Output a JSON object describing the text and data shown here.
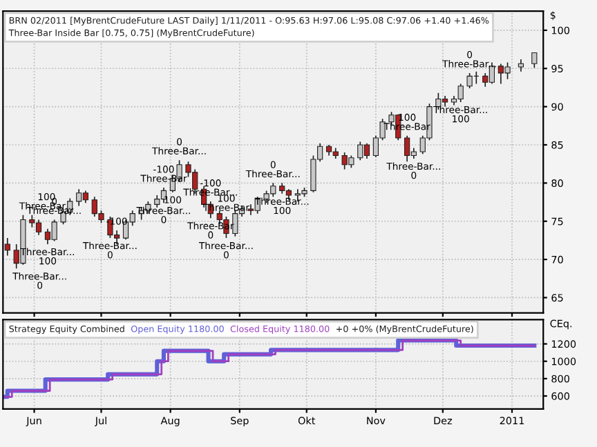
{
  "chart_data": [
    {
      "type": "candlestick",
      "title": "BRN 02/2011 [MyBrentCrudeFuture LAST Daily] 1/11/2011 - O:95.63 H:97.06 L:95.08 C:97.06 +1.40 +1.46%",
      "subtitle": "Three-Bar Inside Bar [0.75, 0.75] (MyBrentCrudeFuture)",
      "ylabel": "$",
      "x": [
        "2010-05-20",
        "2010-05-24",
        "2010-05-27",
        "2010-05-31",
        "2010-06-03",
        "2010-06-07",
        "2010-06-10",
        "2010-06-14",
        "2010-06-17",
        "2010-06-21",
        "2010-06-24",
        "2010-06-28",
        "2010-07-01",
        "2010-07-05",
        "2010-07-08",
        "2010-07-12",
        "2010-07-15",
        "2010-07-19",
        "2010-07-22",
        "2010-07-26",
        "2010-07-29",
        "2010-08-02",
        "2010-08-05",
        "2010-08-09",
        "2010-08-12",
        "2010-08-16",
        "2010-08-19",
        "2010-08-23",
        "2010-08-26",
        "2010-08-30",
        "2010-09-02",
        "2010-09-06",
        "2010-09-09",
        "2010-09-13",
        "2010-09-16",
        "2010-09-20",
        "2010-09-23",
        "2010-09-27",
        "2010-09-30",
        "2010-10-04",
        "2010-10-07",
        "2010-10-11",
        "2010-10-14",
        "2010-10-18",
        "2010-10-21",
        "2010-10-25",
        "2010-10-28",
        "2010-11-01",
        "2010-11-04",
        "2010-11-08",
        "2010-11-11",
        "2010-11-15",
        "2010-11-18",
        "2010-11-22",
        "2010-11-25",
        "2010-11-29",
        "2010-12-02",
        "2010-12-06",
        "2010-12-09",
        "2010-12-13",
        "2010-12-16",
        "2010-12-20",
        "2010-12-23",
        "2010-12-27",
        "2010-12-30",
        "2011-01-05",
        "2011-01-11"
      ],
      "ohlc": [
        [
          72.0,
          72.8,
          70.5,
          71.2
        ],
        [
          71.2,
          72.0,
          68.8,
          69.5
        ],
        [
          69.5,
          75.8,
          69.3,
          75.2
        ],
        [
          75.2,
          75.8,
          74.2,
          74.8
        ],
        [
          74.8,
          75.2,
          73.2,
          73.6
        ],
        [
          73.6,
          74.0,
          72.0,
          72.6
        ],
        [
          72.6,
          75.2,
          72.4,
          74.9
        ],
        [
          74.9,
          76.6,
          74.6,
          76.2
        ],
        [
          76.2,
          78.0,
          75.8,
          77.6
        ],
        [
          77.6,
          79.2,
          77.0,
          78.7
        ],
        [
          78.7,
          79.0,
          77.4,
          77.8
        ],
        [
          77.8,
          78.2,
          75.6,
          76.0
        ],
        [
          76.0,
          76.4,
          74.8,
          75.2
        ],
        [
          75.2,
          75.6,
          72.8,
          73.2
        ],
        [
          73.2,
          73.8,
          72.0,
          72.8
        ],
        [
          72.8,
          75.2,
          72.6,
          74.9
        ],
        [
          74.9,
          76.4,
          74.4,
          76.0
        ],
        [
          76.0,
          76.8,
          75.2,
          76.4
        ],
        [
          76.4,
          77.6,
          76.0,
          77.2
        ],
        [
          77.2,
          78.4,
          76.8,
          77.9
        ],
        [
          77.9,
          79.4,
          77.4,
          79.0
        ],
        [
          79.0,
          81.0,
          78.8,
          80.6
        ],
        [
          80.6,
          83.0,
          80.2,
          82.4
        ],
        [
          82.4,
          82.8,
          80.8,
          81.4
        ],
        [
          81.4,
          81.8,
          78.6,
          79.2
        ],
        [
          79.2,
          79.6,
          76.8,
          77.2
        ],
        [
          77.2,
          77.6,
          75.4,
          76.0
        ],
        [
          76.0,
          76.4,
          74.6,
          75.2
        ],
        [
          75.2,
          75.6,
          72.8,
          73.4
        ],
        [
          73.4,
          76.4,
          73.0,
          76.0
        ],
        [
          76.0,
          77.0,
          75.6,
          76.6
        ],
        [
          76.6,
          77.2,
          75.8,
          76.4
        ],
        [
          76.4,
          78.2,
          76.0,
          77.9
        ],
        [
          77.9,
          79.0,
          77.4,
          78.6
        ],
        [
          78.6,
          80.0,
          78.2,
          79.6
        ],
        [
          79.6,
          80.0,
          78.6,
          79.0
        ],
        [
          79.0,
          79.2,
          77.8,
          78.4
        ],
        [
          78.4,
          79.2,
          77.6,
          78.6
        ],
        [
          78.6,
          79.4,
          78.2,
          79.0
        ],
        [
          79.0,
          83.6,
          78.8,
          83.1
        ],
        [
          83.1,
          85.2,
          82.8,
          84.8
        ],
        [
          84.8,
          85.0,
          83.6,
          84.1
        ],
        [
          84.1,
          84.6,
          83.2,
          83.6
        ],
        [
          83.6,
          84.0,
          81.8,
          82.4
        ],
        [
          82.4,
          83.6,
          82.0,
          83.3
        ],
        [
          83.3,
          85.4,
          83.0,
          85.0
        ],
        [
          85.0,
          85.2,
          83.2,
          83.6
        ],
        [
          83.6,
          86.2,
          83.4,
          85.9
        ],
        [
          85.9,
          88.4,
          85.6,
          88.0
        ],
        [
          88.0,
          89.3,
          87.6,
          88.9
        ],
        [
          88.9,
          89.0,
          85.6,
          85.9
        ],
        [
          85.9,
          86.2,
          82.8,
          83.6
        ],
        [
          83.6,
          84.6,
          83.2,
          84.1
        ],
        [
          84.1,
          86.2,
          83.8,
          85.9
        ],
        [
          85.9,
          90.4,
          85.6,
          90.0
        ],
        [
          90.0,
          91.8,
          89.6,
          91.0
        ],
        [
          91.0,
          91.4,
          90.0,
          90.6
        ],
        [
          90.6,
          91.4,
          90.2,
          91.0
        ],
        [
          91.0,
          93.0,
          90.6,
          92.7
        ],
        [
          92.7,
          94.4,
          92.4,
          94.0
        ],
        [
          94.0,
          94.6,
          93.0,
          94.0
        ],
        [
          94.0,
          94.4,
          92.6,
          93.2
        ],
        [
          93.2,
          95.8,
          93.0,
          95.3
        ],
        [
          95.3,
          95.6,
          93.0,
          94.4
        ],
        [
          94.4,
          95.8,
          93.6,
          95.2
        ],
        [
          95.2,
          96.2,
          94.6,
          95.63
        ],
        [
          95.63,
          97.06,
          95.08,
          97.06
        ]
      ],
      "annotations": [
        {
          "text": "100\nThree-Bar...",
          "x": "2010-05-27",
          "y": 75.8
        },
        {
          "text": "Three-Bar...\n0",
          "x": "2010-05-24",
          "y": 68.8
        },
        {
          "text": "0\nThree-Bar...",
          "x": "2010-06-10",
          "y": 75.2
        },
        {
          "text": "Three-Bar...\n100",
          "x": "2010-06-07",
          "y": 72.0
        },
        {
          "text": "-100",
          "x": "2010-07-08",
          "y": 73.8
        },
        {
          "text": "Three-Bar...\n0",
          "x": "2010-07-05",
          "y": 72.8
        },
        {
          "text": "0\nThree-Bar...",
          "x": "2010-08-05",
          "y": 83.0
        },
        {
          "text": "-100\nThree-Bar",
          "x": "2010-07-29",
          "y": 79.4
        },
        {
          "text": "Three-Bar...\n0",
          "x": "2010-07-29",
          "y": 77.4
        },
        {
          "text": "100",
          "x": "2010-08-02",
          "y": 78.8
        },
        {
          "text": "-100\nThree-Bar...",
          "x": "2010-08-19",
          "y": 77.6
        },
        {
          "text": "100\nThree-Bar",
          "x": "2010-08-26",
          "y": 75.6
        },
        {
          "text": "Three-Bar\n0",
          "x": "2010-08-19",
          "y": 75.4
        },
        {
          "text": "Three-Bar...\n0",
          "x": "2010-08-26",
          "y": 72.8
        },
        {
          "text": "0\nThree-Bar...",
          "x": "2010-09-16",
          "y": 80.0
        },
        {
          "text": "Three-Bar...\n100",
          "x": "2010-09-20",
          "y": 78.6
        },
        {
          "text": "100\nThree-Bar",
          "x": "2010-11-15",
          "y": 86.2
        },
        {
          "text": "Three-Bar...\n0",
          "x": "2010-11-18",
          "y": 83.2
        },
        {
          "text": "0\nThree-Bar...",
          "x": "2010-12-13",
          "y": 94.4
        },
        {
          "text": "Three-Bar...\n100",
          "x": "2010-12-09",
          "y": 90.6
        }
      ],
      "xlim": [
        "2010-05-18",
        "2011-01-15"
      ],
      "ylim": [
        63.0,
        102.5
      ],
      "yticks": [
        65,
        70,
        75,
        80,
        85,
        90,
        95,
        100
      ],
      "grid": true,
      "tick_labels": "y"
    },
    {
      "type": "step",
      "title": "Strategy Equity Combined",
      "ylabel": "CEq.",
      "line_style": "solid",
      "series": [
        {
          "name": "Open Equity 1180.00",
          "color": "#6060d8",
          "x": [
            "2010-05-18",
            "2010-05-20",
            "2010-06-06",
            "2010-07-04",
            "2010-07-26",
            "2010-07-29",
            "2010-08-18",
            "2010-08-25",
            "2010-09-15",
            "2010-11-11",
            "2010-12-07",
            "2011-01-11"
          ],
          "values": [
            590,
            660,
            790,
            850,
            1000,
            1120,
            1000,
            1080,
            1130,
            1240,
            1180,
            1180
          ]
        },
        {
          "name": "Closed Equity 1180.00",
          "color": "#a040c0",
          "x": [
            "2010-05-18",
            "2010-05-22",
            "2010-06-08",
            "2010-07-06",
            "2010-07-28",
            "2010-07-31",
            "2010-08-20",
            "2010-08-27",
            "2010-09-17",
            "2010-11-13",
            "2010-12-09",
            "2011-01-11"
          ],
          "values": [
            590,
            660,
            790,
            850,
            1000,
            1120,
            1000,
            1080,
            1130,
            1240,
            1180,
            1180
          ]
        }
      ],
      "annotations": [
        "+0 +0% (MyBrentCrudeFuture)"
      ],
      "xlim": [
        "2010-05-18",
        "2011-01-15"
      ],
      "xticks": [
        {
          "value": "2010-06-01",
          "label": "Jun"
        },
        {
          "value": "2010-07-01",
          "label": "Jul"
        },
        {
          "value": "2010-08-01",
          "label": "Aug"
        },
        {
          "value": "2010-09-01",
          "label": "Sep"
        },
        {
          "value": "2010-10-01",
          "label": "Okt"
        },
        {
          "value": "2010-11-01",
          "label": "Nov"
        },
        {
          "value": "2010-12-01",
          "label": "Dez"
        },
        {
          "value": "2011-01-01",
          "label": "2011"
        }
      ],
      "ylim": [
        450,
        1480
      ],
      "yticks": [
        600,
        800,
        1000,
        1200
      ],
      "grid": true
    }
  ]
}
